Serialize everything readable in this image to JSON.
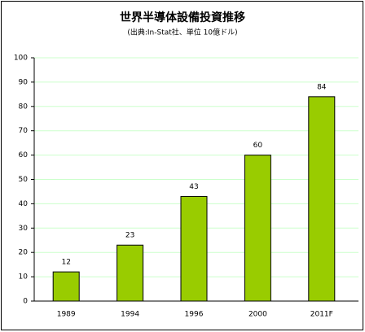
{
  "chart_data": {
    "type": "bar",
    "title": "世界半導体設備投資推移",
    "subtitle": "(出典:In-Stat社、単位 10億ドル)",
    "categories": [
      "1989",
      "1994",
      "1996",
      "2000",
      "2011F"
    ],
    "values": [
      12,
      23,
      43,
      60,
      84
    ],
    "color": "#99cc00",
    "ylim": [
      0,
      100
    ],
    "yticks": [
      0,
      10,
      20,
      30,
      40,
      50,
      60,
      70,
      80,
      90,
      100
    ],
    "grid": true
  }
}
